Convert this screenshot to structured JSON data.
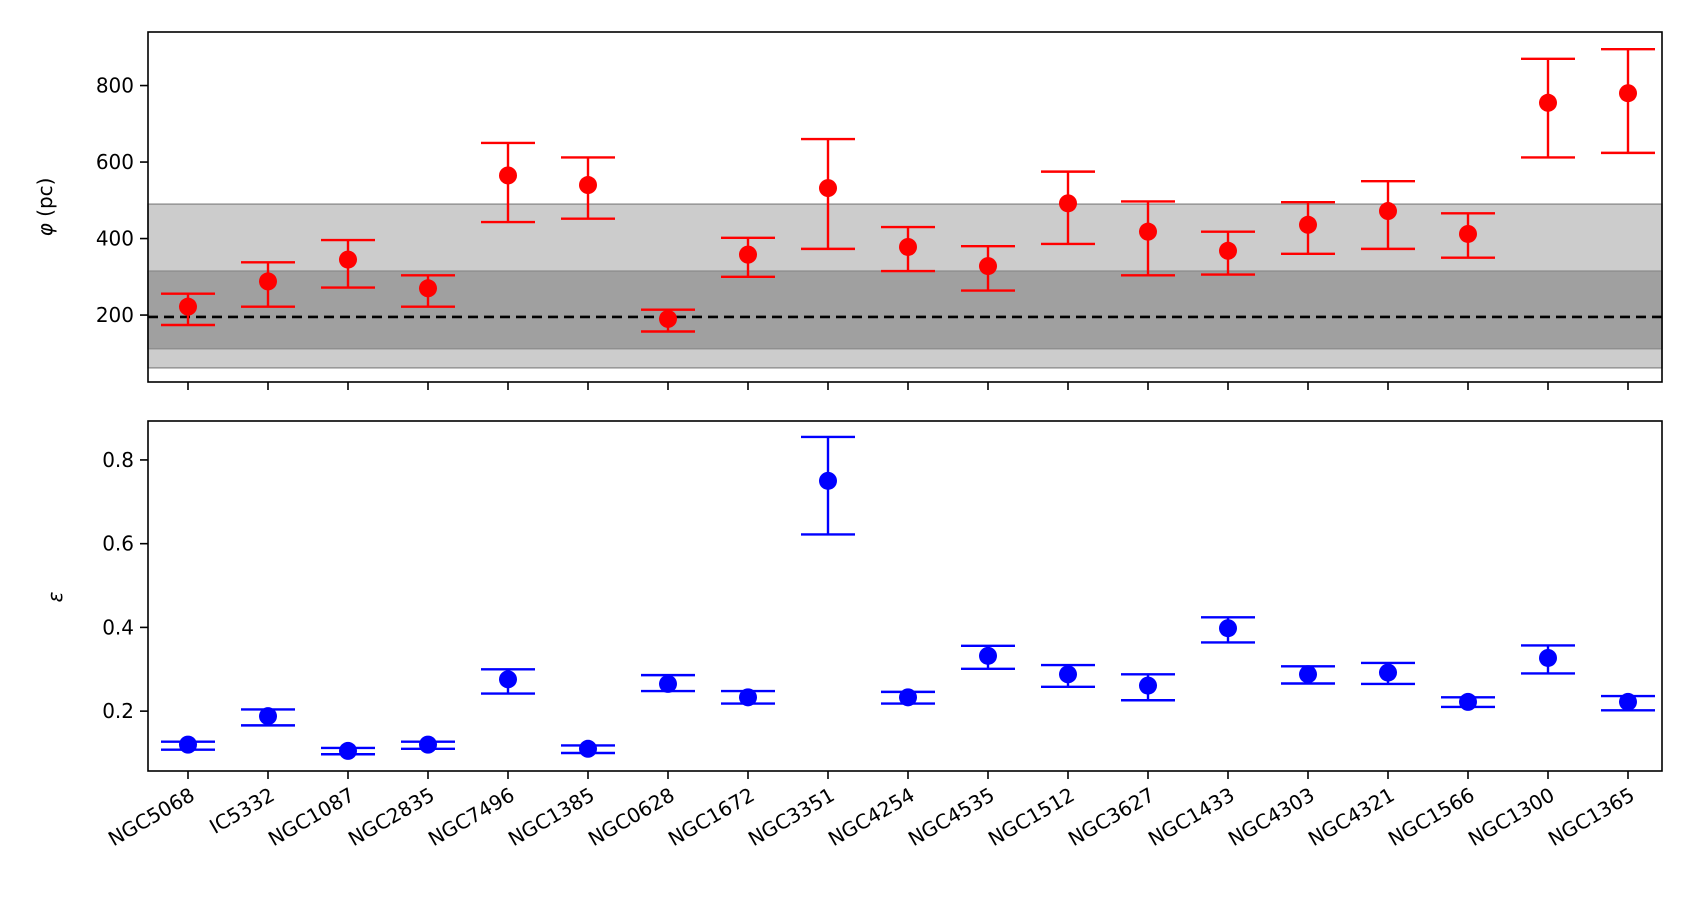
{
  "chart_data": [
    {
      "type": "scatter",
      "panel": "top",
      "ylabel_symbol": "φ",
      "ylabel_unit": "(pc)",
      "ylim": [
        25,
        940
      ],
      "yticks": [
        200,
        400,
        600,
        800
      ],
      "color": "#ff0000",
      "categories": [
        "NGC5068",
        "IC5332",
        "NGC1087",
        "NGC2835",
        "NGC7496",
        "NGC1385",
        "NGC0628",
        "NGC1672",
        "NGC3351",
        "NGC4254",
        "NGC4535",
        "NGC1512",
        "NGC3627",
        "NGC1433",
        "NGC4303",
        "NGC4321",
        "NGC1566",
        "NGC1300",
        "NGC1365"
      ],
      "values": [
        222,
        288,
        345,
        270,
        565,
        540,
        190,
        358,
        532,
        378,
        328,
        492,
        418,
        368,
        436,
        472,
        412,
        755,
        780
      ],
      "err_low": [
        174,
        222,
        272,
        222,
        443,
        452,
        157,
        300,
        373,
        315,
        264,
        386,
        304,
        306,
        360,
        373,
        350,
        612,
        624
      ],
      "err_high": [
        256,
        338,
        396,
        304,
        650,
        612,
        214,
        402,
        660,
        430,
        380,
        575,
        497,
        418,
        495,
        550,
        466,
        870,
        895
      ],
      "reference_line": 195,
      "bands": [
        {
          "range": [
            62,
            490
          ],
          "color": "#cccccc"
        },
        {
          "range": [
            112,
            315
          ],
          "color": "#a0a0a0"
        }
      ]
    },
    {
      "type": "scatter",
      "panel": "bottom",
      "ylabel_symbol": "ε",
      "ylim": [
        0.057,
        0.893
      ],
      "yticks": [
        0.2,
        0.4,
        0.6,
        0.8
      ],
      "color": "#0000ff",
      "categories": [
        "NGC5068",
        "IC5332",
        "NGC1087",
        "NGC2835",
        "NGC7496",
        "NGC1385",
        "NGC0628",
        "NGC1672",
        "NGC3351",
        "NGC4254",
        "NGC4535",
        "NGC1512",
        "NGC3627",
        "NGC1433",
        "NGC4303",
        "NGC4321",
        "NGC1566",
        "NGC1300",
        "NGC1365"
      ],
      "values": [
        0.12,
        0.188,
        0.105,
        0.12,
        0.276,
        0.11,
        0.265,
        0.233,
        0.75,
        0.233,
        0.332,
        0.288,
        0.261,
        0.398,
        0.288,
        0.292,
        0.222,
        0.327,
        0.222
      ],
      "err_low": [
        0.108,
        0.166,
        0.097,
        0.11,
        0.242,
        0.1,
        0.248,
        0.218,
        0.622,
        0.218,
        0.301,
        0.258,
        0.226,
        0.364,
        0.266,
        0.265,
        0.21,
        0.29,
        0.202
      ],
      "err_high": [
        0.127,
        0.204,
        0.112,
        0.127,
        0.3,
        0.118,
        0.286,
        0.248,
        0.855,
        0.246,
        0.356,
        0.31,
        0.288,
        0.424,
        0.307,
        0.315,
        0.233,
        0.357,
        0.236
      ]
    }
  ]
}
